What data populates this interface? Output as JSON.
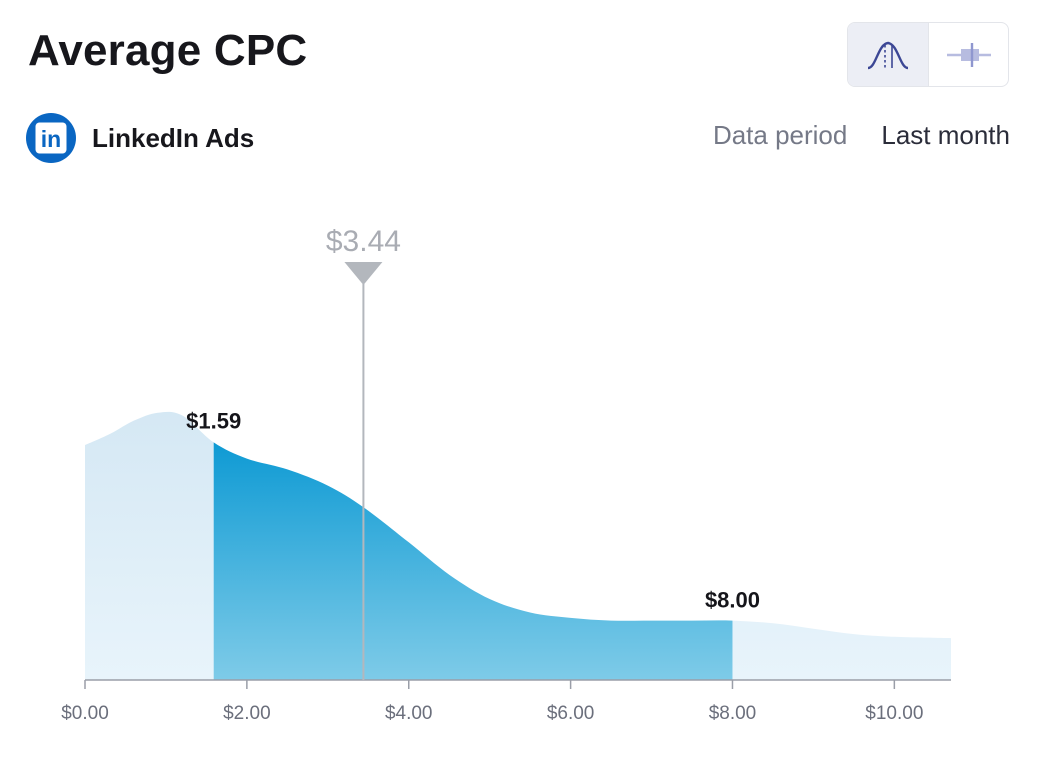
{
  "header": {
    "title": "Average CPC"
  },
  "view_toggle": {
    "options": [
      {
        "name": "distribution-curve-icon",
        "active": true
      },
      {
        "name": "box-plot-icon",
        "active": false
      }
    ]
  },
  "source": {
    "icon": "linkedin-logo",
    "logo_text": "in",
    "name": "LinkedIn Ads"
  },
  "period": {
    "label": "Data period",
    "value": "Last month"
  },
  "colors": {
    "highlight_top": "#0094d1",
    "highlight_bottom": "#7ecbe8",
    "tail_top": "#d5e8f4",
    "tail_bottom": "#e8f4fb",
    "marker": "#b3b7bd"
  },
  "chart_data": {
    "type": "area",
    "xlabel": "",
    "ylabel": "",
    "xlim": [
      0,
      10.7
    ],
    "x_ticks": [
      "$0.00",
      "$2.00",
      "$4.00",
      "$6.00",
      "$8.00",
      "$10.00"
    ],
    "x_tick_values": [
      0,
      2,
      4,
      6,
      8,
      10
    ],
    "curve": {
      "x": [
        0,
        0.3,
        0.6,
        0.9,
        1.2,
        1.59,
        2.0,
        2.5,
        3.0,
        3.44,
        4.0,
        4.5,
        5.0,
        5.5,
        6.0,
        6.5,
        7.0,
        7.5,
        8.0,
        8.5,
        9.0,
        9.5,
        10.0,
        10.7
      ],
      "density": [
        0.87,
        0.91,
        0.96,
        0.99,
        0.98,
        0.88,
        0.82,
        0.78,
        0.72,
        0.64,
        0.51,
        0.39,
        0.3,
        0.25,
        0.23,
        0.22,
        0.22,
        0.22,
        0.22,
        0.21,
        0.19,
        0.17,
        0.16,
        0.155
      ]
    },
    "percentile_low": {
      "value": 1.59,
      "label": "$1.59"
    },
    "percentile_high": {
      "value": 8.0,
      "label": "$8.00"
    },
    "marker": {
      "value": 3.44,
      "label": "$3.44"
    }
  }
}
